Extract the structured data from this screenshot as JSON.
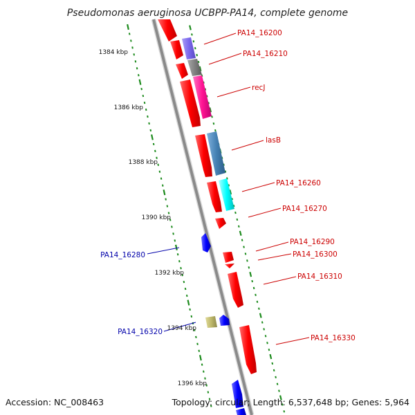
{
  "title": "Pseudomonas aeruginosa UCBPP-PA14, complete genome",
  "colors": {
    "backbone": "#8a8a8a",
    "tick": "#1b8a1b",
    "forward_label": "#cc0000",
    "reverse_label": "#0000aa"
  },
  "kbp_labels": [
    "1384 kbp",
    "1386 kbp",
    "1388 kbp",
    "1390 kbp",
    "1392 kbp",
    "1394 kbp",
    "1396 kbp"
  ],
  "genes": [
    {
      "label": "PA14_16200",
      "color": "#7b68ee"
    },
    {
      "label": "PA14_16210",
      "color": "#808080"
    },
    {
      "label": "recJ",
      "color": "#ff1493"
    },
    {
      "label": "lasB",
      "color": "#4682b4"
    },
    {
      "label": "PA14_16260",
      "color": "#00ffff"
    },
    {
      "label": "PA14_16270",
      "color": "#ff0000"
    },
    {
      "label": "PA14_16290",
      "color": "#ff0000"
    },
    {
      "label": "PA14_16300",
      "color": "#ff0000"
    },
    {
      "label": "PA14_16310",
      "color": "#ff0000"
    },
    {
      "label": "PA14_16330",
      "color": "#ff0000"
    },
    {
      "label": "PA14_16280",
      "color": "#0000ff"
    },
    {
      "label": "PA14_16320",
      "color": "#bdb76b"
    }
  ],
  "footer": {
    "accession": "Accession: NC_008463",
    "stats": "Topology: circular; Length: 6,537,648 bp; Genes: 5,964"
  }
}
